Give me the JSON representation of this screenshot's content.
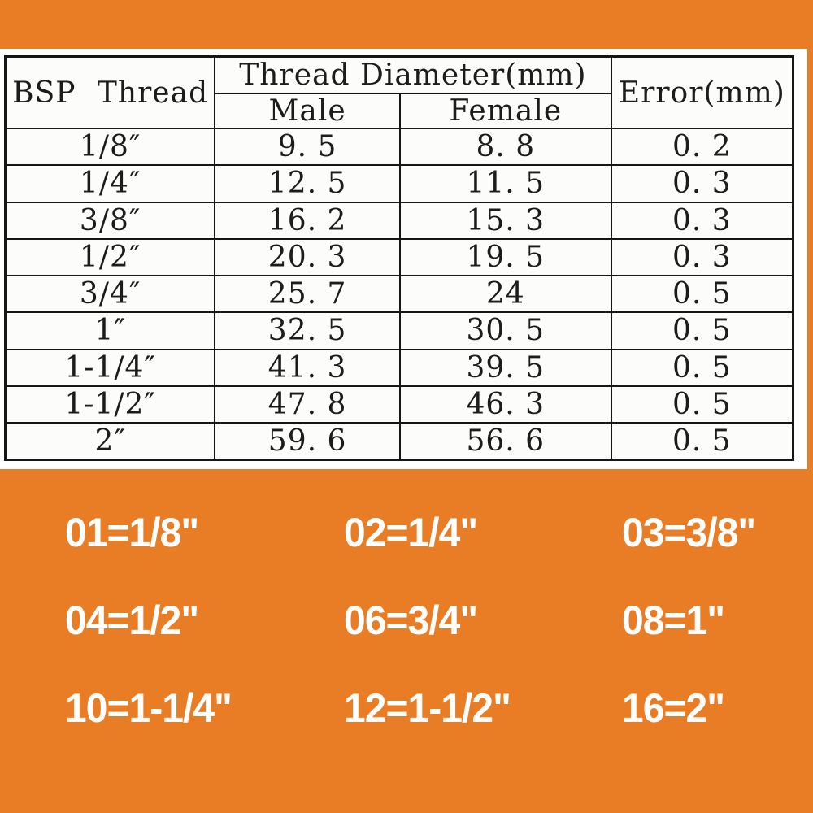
{
  "colors": {
    "background_orange": "#E87D25",
    "panel_white": "#ffffff",
    "table_border_black": "#161616",
    "table_text": "#1c1c1c",
    "code_text_white": "#ffffff"
  },
  "table": {
    "bsp_header": "BSP Thread",
    "diameter_group_header": "Thread Diameter(mm)",
    "male_header": "Male",
    "female_header": "Female",
    "error_header": "Error(mm)",
    "rows": [
      {
        "size": "1/8″",
        "male": "9. 5",
        "female": "8. 8",
        "error": "0. 2"
      },
      {
        "size": "1/4″",
        "male": "12. 5",
        "female": "11. 5",
        "error": "0. 3"
      },
      {
        "size": "3/8″",
        "male": "16. 2",
        "female": "15. 3",
        "error": "0. 3"
      },
      {
        "size": "1/2″",
        "male": "20. 3",
        "female": "19. 5",
        "error": "0. 3"
      },
      {
        "size": "3/4″",
        "male": "25. 7",
        "female": "24",
        "error": "0. 5"
      },
      {
        "size": "1″",
        "male": "32. 5",
        "female": "30. 5",
        "error": "0. 5"
      },
      {
        "size": "1-1/4″",
        "male": "41. 3",
        "female": "39. 5",
        "error": "0. 5"
      },
      {
        "size": "1-1/2″",
        "male": "47. 8",
        "female": "46. 3",
        "error": "0. 5"
      },
      {
        "size": "2″",
        "male": "59. 6",
        "female": "56. 6",
        "error": "0. 5"
      }
    ]
  },
  "codes": {
    "rows": [
      [
        "01=1/8\"",
        "02=1/4\"",
        "03=3/8\""
      ],
      [
        "04=1/2\"",
        "06=3/4\"",
        "08=1\""
      ],
      [
        "10=1-1/4\"",
        "12=1-1/2\"",
        "16=2\""
      ]
    ]
  }
}
